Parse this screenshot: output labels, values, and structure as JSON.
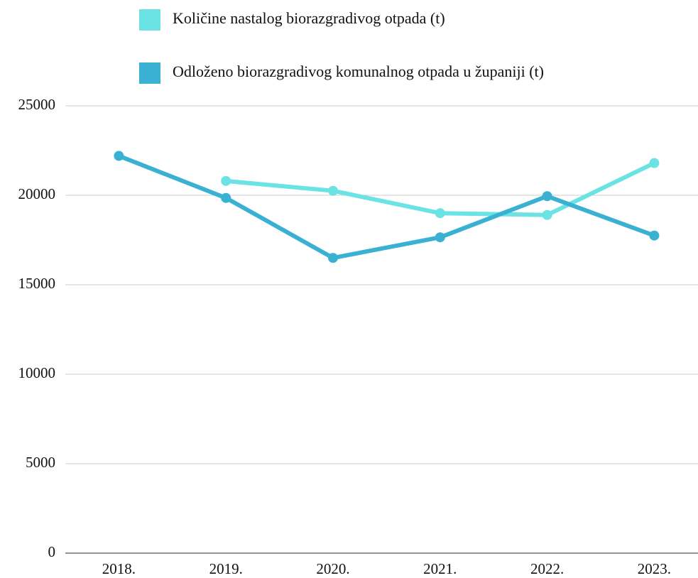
{
  "chart_data": {
    "type": "line",
    "categories": [
      "2018.",
      "2019.",
      "2020.",
      "2021.",
      "2022.",
      "2023."
    ],
    "series": [
      {
        "name": "Količine nastalog biorazgradivog otpada (t)",
        "color": "#6be3e5",
        "values": [
          null,
          20800,
          20250,
          19000,
          18900,
          21800
        ]
      },
      {
        "name": "Odloženo biorazgradivog komunalnog otpada u županiji (t)",
        "color": "#3ab1d3",
        "values": [
          22200,
          19850,
          16500,
          17650,
          19950,
          17750
        ]
      }
    ],
    "ylim": [
      0,
      25000
    ],
    "yticks": [
      0,
      5000,
      10000,
      15000,
      20000,
      25000
    ],
    "grid": true,
    "legend": "top"
  }
}
